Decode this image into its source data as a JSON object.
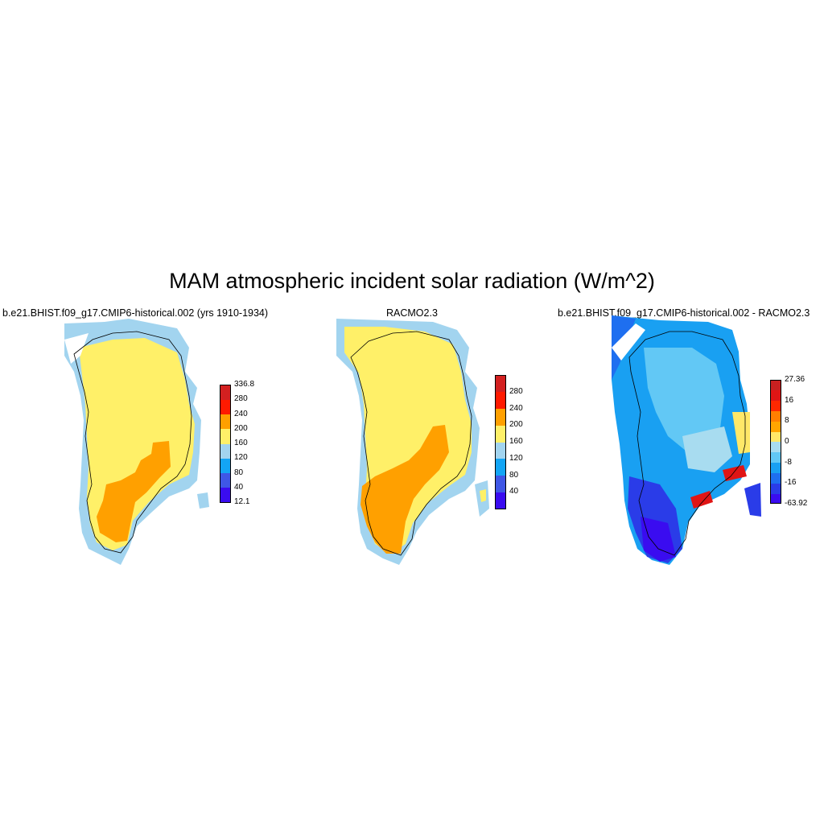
{
  "title": "MAM atmospheric incident solar radiation (W/m^2)",
  "panels": [
    {
      "id": "model",
      "title": "b.e21.BHIST.f09_g17.CMIP6-historical.002 (yrs 1910-1934)",
      "colorbar": {
        "colors": [
          "#3a0cf0",
          "#3f57e6",
          "#13a5f5",
          "#a2d4ef",
          "#fff068",
          "#ffa000",
          "#ff1a00",
          "#d32020"
        ],
        "labels": [
          "12.1",
          "40",
          "80",
          "120",
          "160",
          "200",
          "240",
          "280",
          "336.8"
        ]
      }
    },
    {
      "id": "racmo",
      "title": "RACMO2.3",
      "colorbar": {
        "colors": [
          "#3a0cf0",
          "#3f57e6",
          "#13a5f5",
          "#a2d4ef",
          "#fff068",
          "#ffa000",
          "#ff1a00",
          "#d32020"
        ],
        "labels": [
          "",
          "40",
          "80",
          "120",
          "160",
          "200",
          "240",
          "280",
          ""
        ]
      }
    },
    {
      "id": "diff",
      "title": "b.e21.BHIST.f09_g17.CMIP6-historical.002 - RACMO2.3",
      "colorbar": {
        "colors": [
          "#3a0cf0",
          "#2a3ce8",
          "#1e6ff0",
          "#19a0f2",
          "#62c8f5",
          "#a8dcf0",
          "#ffe868",
          "#ffa500",
          "#ff7f00",
          "#ff2800",
          "#e01515",
          "#c82020"
        ],
        "labels": [
          "-63.92",
          "",
          "-16",
          "",
          "-8",
          "",
          "0",
          "",
          "8",
          "",
          "16",
          "",
          "27.36"
        ]
      }
    }
  ]
}
